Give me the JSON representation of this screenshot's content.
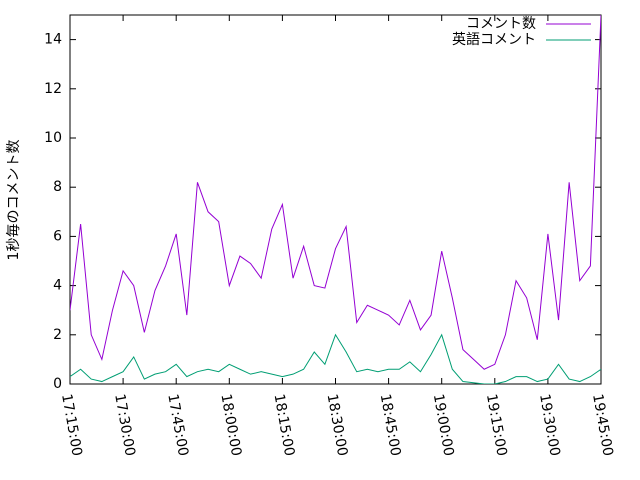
{
  "chart_data": {
    "type": "line",
    "ylabel": "1秒毎のコメント数",
    "x": [
      "17:15:00",
      "17:18:00",
      "17:21:00",
      "17:24:00",
      "17:27:00",
      "17:30:00",
      "17:33:00",
      "17:36:00",
      "17:39:00",
      "17:42:00",
      "17:45:00",
      "17:48:00",
      "17:51:00",
      "17:54:00",
      "17:57:00",
      "18:00:00",
      "18:03:00",
      "18:06:00",
      "18:09:00",
      "18:12:00",
      "18:15:00",
      "18:18:00",
      "18:21:00",
      "18:24:00",
      "18:27:00",
      "18:30:00",
      "18:33:00",
      "18:36:00",
      "18:39:00",
      "18:42:00",
      "18:45:00",
      "18:48:00",
      "18:51:00",
      "18:54:00",
      "18:57:00",
      "19:00:00",
      "19:03:00",
      "19:06:00",
      "19:09:00",
      "19:12:00",
      "19:15:00",
      "19:18:00",
      "19:21:00",
      "19:24:00",
      "19:27:00",
      "19:30:00",
      "19:33:00",
      "19:36:00",
      "19:39:00",
      "19:42:00",
      "19:45:00"
    ],
    "series": [
      {
        "name": "コメント数",
        "color": "#9400d3",
        "values": [
          3.0,
          6.5,
          2.0,
          1.0,
          3.0,
          4.6,
          4.0,
          2.1,
          3.8,
          4.8,
          6.1,
          2.8,
          8.2,
          7.0,
          6.6,
          4.0,
          5.2,
          4.9,
          4.3,
          6.3,
          7.3,
          4.3,
          5.6,
          4.0,
          3.9,
          5.5,
          6.4,
          2.5,
          3.2,
          3.0,
          2.8,
          2.4,
          3.4,
          2.2,
          2.8,
          5.4,
          3.5,
          1.4,
          1.0,
          0.6,
          0.8,
          2.0,
          4.2,
          3.5,
          1.8,
          6.1,
          2.6,
          8.2,
          4.2,
          4.8,
          15
        ]
      },
      {
        "name": "英語コメント",
        "color": "#009e73",
        "values": [
          0.3,
          0.6,
          0.2,
          0.1,
          0.3,
          0.5,
          1.1,
          0.2,
          0.4,
          0.5,
          0.8,
          0.3,
          0.5,
          0.6,
          0.5,
          0.8,
          0.6,
          0.4,
          0.5,
          0.4,
          0.3,
          0.4,
          0.6,
          1.3,
          0.8,
          2.0,
          1.3,
          0.5,
          0.6,
          0.5,
          0.6,
          0.6,
          0.9,
          0.5,
          1.2,
          2.0,
          0.6,
          0.1,
          0.05,
          0,
          0,
          0.1,
          0.3,
          0.3,
          0.1,
          0.2,
          0.8,
          0.2,
          0.1,
          0.3,
          0.6
        ]
      }
    ],
    "xlim": [
      "17:15:00",
      "19:45:00"
    ],
    "xticks": [
      "17:15:00",
      "17:30:00",
      "17:45:00",
      "18:00:00",
      "18:15:00",
      "18:30:00",
      "18:45:00",
      "19:00:00",
      "19:15:00",
      "19:30:00",
      "19:45:00"
    ],
    "ylim": [
      0,
      15
    ],
    "yticks": [
      0,
      2,
      4,
      6,
      8,
      10,
      12,
      14
    ],
    "legend": "top-right"
  }
}
